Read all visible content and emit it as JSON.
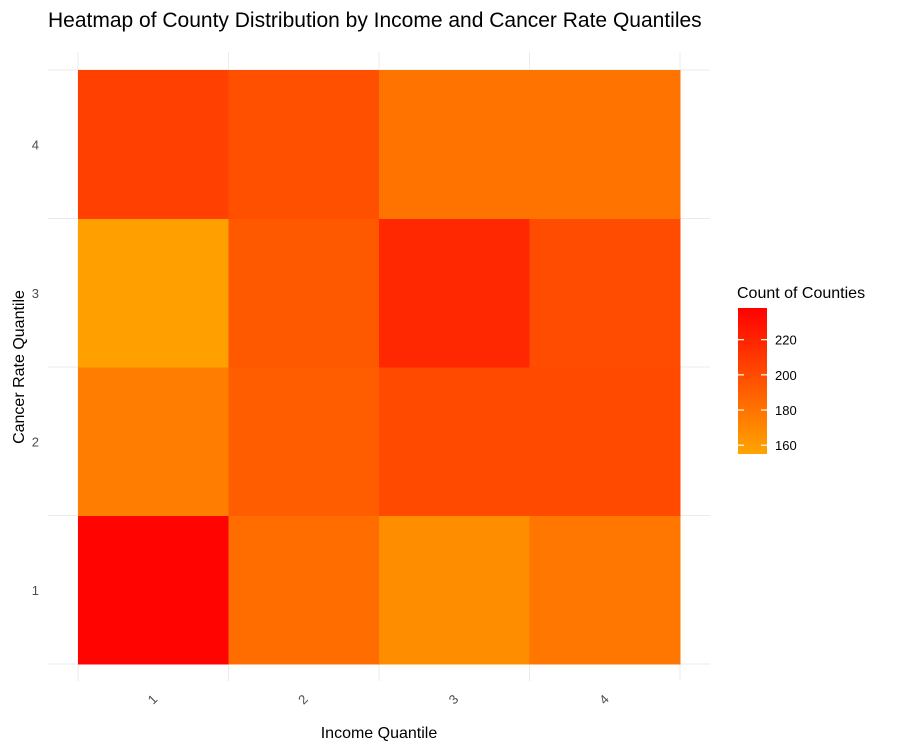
{
  "chart_data": {
    "type": "heatmap",
    "title": "Heatmap of County Distribution by Income and Cancer Rate Quantiles",
    "xlabel": "Income Quantile",
    "ylabel": "Cancer Rate Quantile",
    "x_categories": [
      "1",
      "2",
      "3",
      "4"
    ],
    "y_categories": [
      "1",
      "2",
      "3",
      "4"
    ],
    "values": [
      [
        236,
        183,
        167,
        178
      ],
      [
        175,
        191,
        201,
        201
      ],
      [
        158,
        193,
        218,
        200
      ],
      [
        206,
        198,
        180,
        180
      ]
    ],
    "legend": {
      "title": "Count of Counties",
      "ticks": [
        160,
        180,
        200,
        220
      ],
      "range": [
        155,
        238
      ],
      "low_color": "#FFA500",
      "high_color": "#FF0000",
      "placement": "right"
    },
    "grid": true,
    "grid_color": "#ebebeb",
    "x_tick_rotation_deg": 45
  }
}
